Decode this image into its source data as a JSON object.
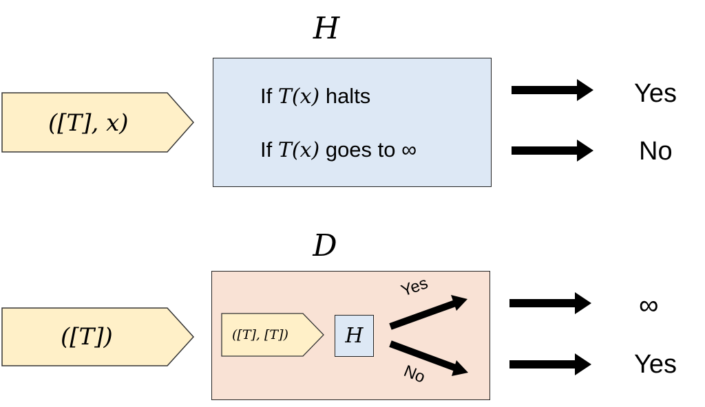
{
  "top": {
    "title": "H",
    "input_label": "([T], x)",
    "conditions": [
      {
        "prefix": "If",
        "math": "T(x)",
        "suffix": "halts"
      },
      {
        "prefix": "If",
        "math": "T(x)",
        "suffix": "goes to ∞"
      }
    ],
    "outputs": [
      "Yes",
      "No"
    ]
  },
  "bottom": {
    "title": "D",
    "input_label": "([T])",
    "inner_input_label": "([T], [T])",
    "inner_machine_label": "H",
    "branch_labels": [
      "Yes",
      "No"
    ],
    "outputs": [
      "∞",
      "Yes"
    ]
  },
  "colors": {
    "input_fill": "#fff0c8",
    "h_box_fill": "#dde8f5",
    "d_box_fill": "#f9e2d5",
    "arrow": "#000000"
  }
}
